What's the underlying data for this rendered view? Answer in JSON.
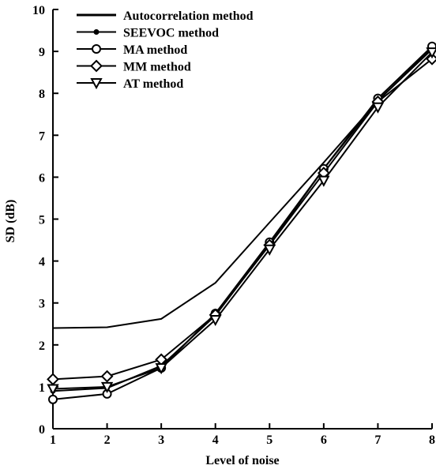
{
  "chart_data": {
    "type": "line",
    "title": "",
    "xlabel": "Level of noise",
    "ylabel": "SD (dB)",
    "x": [
      1,
      2,
      3,
      4,
      5,
      6,
      7,
      8
    ],
    "xlim": [
      1,
      8
    ],
    "ylim": [
      0,
      10
    ],
    "x_ticks": [
      "1",
      "2",
      "3",
      "4",
      "5",
      "6",
      "7",
      "8"
    ],
    "y_ticks": [
      "0",
      "1",
      "2",
      "3",
      "4",
      "5",
      "6",
      "7",
      "8",
      "9",
      "10"
    ],
    "grid": false,
    "legend_position": "top-left",
    "series": [
      {
        "name": "Autocorrelation method",
        "marker": "none",
        "values": [
          2.4,
          2.42,
          2.62,
          3.48,
          4.92,
          6.35,
          7.82,
          9.08
        ]
      },
      {
        "name": "SEEVOC method",
        "marker": "dot",
        "values": [
          0.9,
          0.97,
          1.5,
          2.7,
          4.4,
          6.2,
          7.83,
          9.05
        ]
      },
      {
        "name": "MA method",
        "marker": "circle",
        "values": [
          0.7,
          0.83,
          1.45,
          2.75,
          4.45,
          6.2,
          7.88,
          9.12
        ]
      },
      {
        "name": "MM method",
        "marker": "diamond",
        "values": [
          1.18,
          1.25,
          1.65,
          2.72,
          4.38,
          6.1,
          7.8,
          8.82
        ]
      },
      {
        "name": "AT method",
        "marker": "triangle-down",
        "values": [
          0.95,
          1.0,
          1.45,
          2.6,
          4.28,
          5.92,
          7.67,
          8.98
        ]
      }
    ]
  }
}
